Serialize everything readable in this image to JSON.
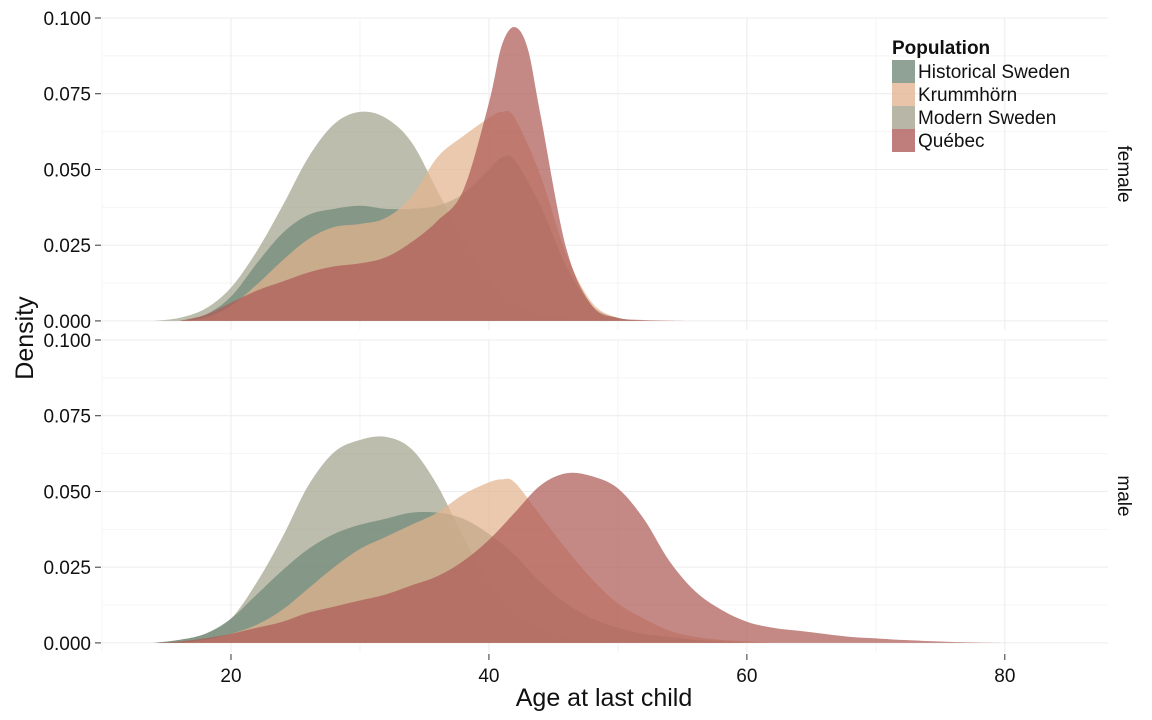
{
  "chart_data": {
    "type": "area",
    "subtype": "density",
    "xlabel": "Age at last child",
    "ylabel": "Density",
    "xlim": [
      10,
      88
    ],
    "ylim": [
      -0.003,
      0.1
    ],
    "x_ticks": [
      20,
      40,
      60,
      80
    ],
    "x_tick_labels": [
      "20",
      "40",
      "60",
      "80"
    ],
    "y_ticks": [
      0,
      0.025,
      0.05,
      0.075,
      0.1
    ],
    "y_tick_labels": [
      "0.000",
      "0.025",
      "0.050",
      "0.075",
      "0.100"
    ],
    "grid": true,
    "legend": {
      "title": "Population",
      "position": "top-right",
      "entries": [
        "Historical Sweden",
        "Krummhörn",
        "Modern Sweden",
        "Québec"
      ]
    },
    "series_colors": {
      "Historical Sweden": "#6f8877",
      "Krummhörn": "#e3b48f",
      "Modern Sweden": "#a4a38e",
      "Québec": "#ad5a56"
    },
    "panels": [
      {
        "strip": "female",
        "series": [
          {
            "name": "Modern Sweden",
            "x": [
              14,
              16,
              18,
              20,
              22,
              24,
              26,
              28,
              30,
              32,
              34,
              36,
              38,
              40,
              42,
              44,
              46,
              48,
              50,
              52
            ],
            "y": [
              0,
              0.001,
              0.004,
              0.011,
              0.023,
              0.038,
              0.054,
              0.065,
              0.069,
              0.067,
              0.059,
              0.043,
              0.027,
              0.014,
              0.006,
              0.002,
              0.001,
              0,
              0,
              0
            ]
          },
          {
            "name": "Historical Sweden",
            "x": [
              16,
              18,
              20,
              22,
              24,
              26,
              28,
              30,
              32,
              34,
              36,
              38,
              40,
              41,
              42,
              44,
              46,
              48,
              50,
              52
            ],
            "y": [
              0,
              0.002,
              0.008,
              0.019,
              0.029,
              0.035,
              0.037,
              0.038,
              0.037,
              0.037,
              0.038,
              0.042,
              0.05,
              0.054,
              0.053,
              0.038,
              0.018,
              0.005,
              0.001,
              0
            ]
          },
          {
            "name": "Krummhörn",
            "x": [
              16,
              18,
              20,
              22,
              24,
              26,
              28,
              30,
              32,
              34,
              36,
              38,
              40,
              41,
              42,
              44,
              46,
              48,
              50,
              52
            ],
            "y": [
              0,
              0.001,
              0.005,
              0.012,
              0.02,
              0.027,
              0.031,
              0.032,
              0.034,
              0.041,
              0.054,
              0.061,
              0.067,
              0.069,
              0.067,
              0.048,
              0.022,
              0.006,
              0.001,
              0
            ]
          },
          {
            "name": "Québec",
            "x": [
              16,
              18,
              20,
              22,
              24,
              26,
              28,
              30,
              32,
              34,
              36,
              38,
              40,
              41,
              42,
              43,
              44,
              46,
              48,
              50,
              52,
              54,
              56
            ],
            "y": [
              0,
              0.002,
              0.006,
              0.01,
              0.013,
              0.016,
              0.018,
              0.019,
              0.021,
              0.026,
              0.033,
              0.043,
              0.072,
              0.091,
              0.097,
              0.09,
              0.068,
              0.024,
              0.005,
              0.001,
              0.0003,
              0.0001,
              0
            ]
          }
        ]
      },
      {
        "strip": "male",
        "series": [
          {
            "name": "Modern Sweden",
            "x": [
              14,
              16,
              18,
              20,
              22,
              24,
              26,
              28,
              30,
              32,
              34,
              36,
              38,
              40,
              42,
              44,
              46,
              48,
              50,
              52
            ],
            "y": [
              0,
              0.001,
              0.003,
              0.008,
              0.02,
              0.035,
              0.052,
              0.063,
              0.067,
              0.068,
              0.064,
              0.052,
              0.035,
              0.02,
              0.01,
              0.005,
              0.002,
              0.0005,
              0,
              0
            ]
          },
          {
            "name": "Historical Sweden",
            "x": [
              14,
              16,
              18,
              20,
              22,
              24,
              26,
              28,
              30,
              32,
              34,
              36,
              38,
              40,
              42,
              44,
              46,
              48,
              50,
              52,
              54,
              56,
              58,
              60
            ],
            "y": [
              0,
              0.001,
              0.003,
              0.008,
              0.016,
              0.024,
              0.031,
              0.036,
              0.039,
              0.041,
              0.043,
              0.043,
              0.041,
              0.036,
              0.029,
              0.02,
              0.013,
              0.008,
              0.005,
              0.003,
              0.002,
              0.001,
              0.0005,
              0
            ]
          },
          {
            "name": "Krummhörn",
            "x": [
              16,
              18,
              20,
              22,
              24,
              26,
              28,
              30,
              32,
              34,
              36,
              38,
              40,
              41,
              42,
              44,
              46,
              48,
              50,
              52,
              54,
              56,
              58,
              60,
              62
            ],
            "y": [
              0,
              0.001,
              0.003,
              0.006,
              0.011,
              0.018,
              0.025,
              0.031,
              0.035,
              0.039,
              0.043,
              0.049,
              0.053,
              0.054,
              0.053,
              0.042,
              0.031,
              0.021,
              0.013,
              0.008,
              0.004,
              0.002,
              0.001,
              0.0005,
              0
            ]
          },
          {
            "name": "Québec",
            "x": [
              14,
              16,
              18,
              20,
              22,
              24,
              26,
              28,
              30,
              32,
              34,
              36,
              38,
              40,
              42,
              44,
              46,
              48,
              50,
              52,
              54,
              56,
              58,
              60,
              62,
              64,
              66,
              68,
              70,
              72,
              76,
              80
            ],
            "y": [
              0,
              0.0005,
              0.0015,
              0.003,
              0.005,
              0.007,
              0.01,
              0.012,
              0.014,
              0.016,
              0.019,
              0.022,
              0.027,
              0.034,
              0.043,
              0.052,
              0.056,
              0.055,
              0.051,
              0.041,
              0.027,
              0.017,
              0.011,
              0.007,
              0.005,
              0.004,
              0.003,
              0.002,
              0.0015,
              0.001,
              0.0003,
              0
            ]
          }
        ]
      }
    ]
  }
}
